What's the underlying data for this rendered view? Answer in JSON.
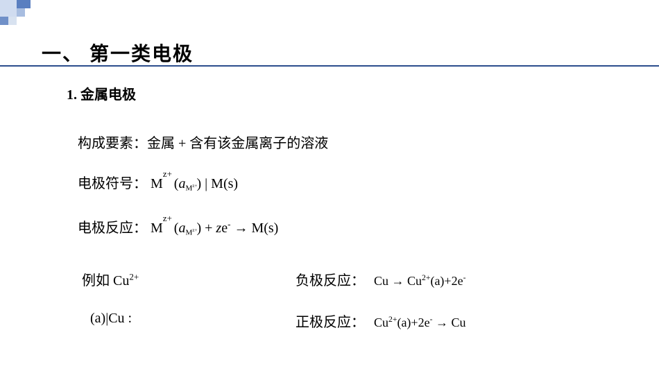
{
  "colors": {
    "background": "#ffffff",
    "underline": "#2c4d8c",
    "text": "#000000",
    "deco_light": "#d0dcf0",
    "deco_mid": "#a8bde0",
    "deco_dark": "#5a7fc0"
  },
  "title": "一、 第一类电极",
  "subtitle": "1. 金属电极",
  "lines": {
    "composition_label": "构成要素：",
    "composition_text": "金属  +  含有该金属离子的溶液",
    "notation_label": "电极符号：",
    "reaction_label": "电极反应：",
    "example_label": "例如  Cu",
    "example_sup": "2+",
    "example2": "(a)|Cu :",
    "neg_label": "负极反应：",
    "neg_eq_pre": "Cu → Cu",
    "neg_eq_sup1": "2+",
    "neg_eq_mid": "(a)+2e",
    "neg_eq_sup2": "-",
    "pos_label": "正极反应：",
    "pos_eq_pre": "Cu",
    "pos_eq_sup1": "2+",
    "pos_eq_mid": "(a)+2e",
    "pos_eq_sup2": "-",
    "pos_eq_post": " → Cu"
  },
  "formula_notation": {
    "M": "M",
    "zplus": "z+",
    "a": "a",
    "sub_M": "M",
    "sub_zplus": "z+",
    "paren_open": "(",
    "paren_close": ")",
    "bar": " | ",
    "Ms": "M(s)"
  },
  "formula_reaction": {
    "plus": " + ",
    "z": "z",
    "e": "e",
    "minus": "-",
    "arrow": "  →  "
  }
}
